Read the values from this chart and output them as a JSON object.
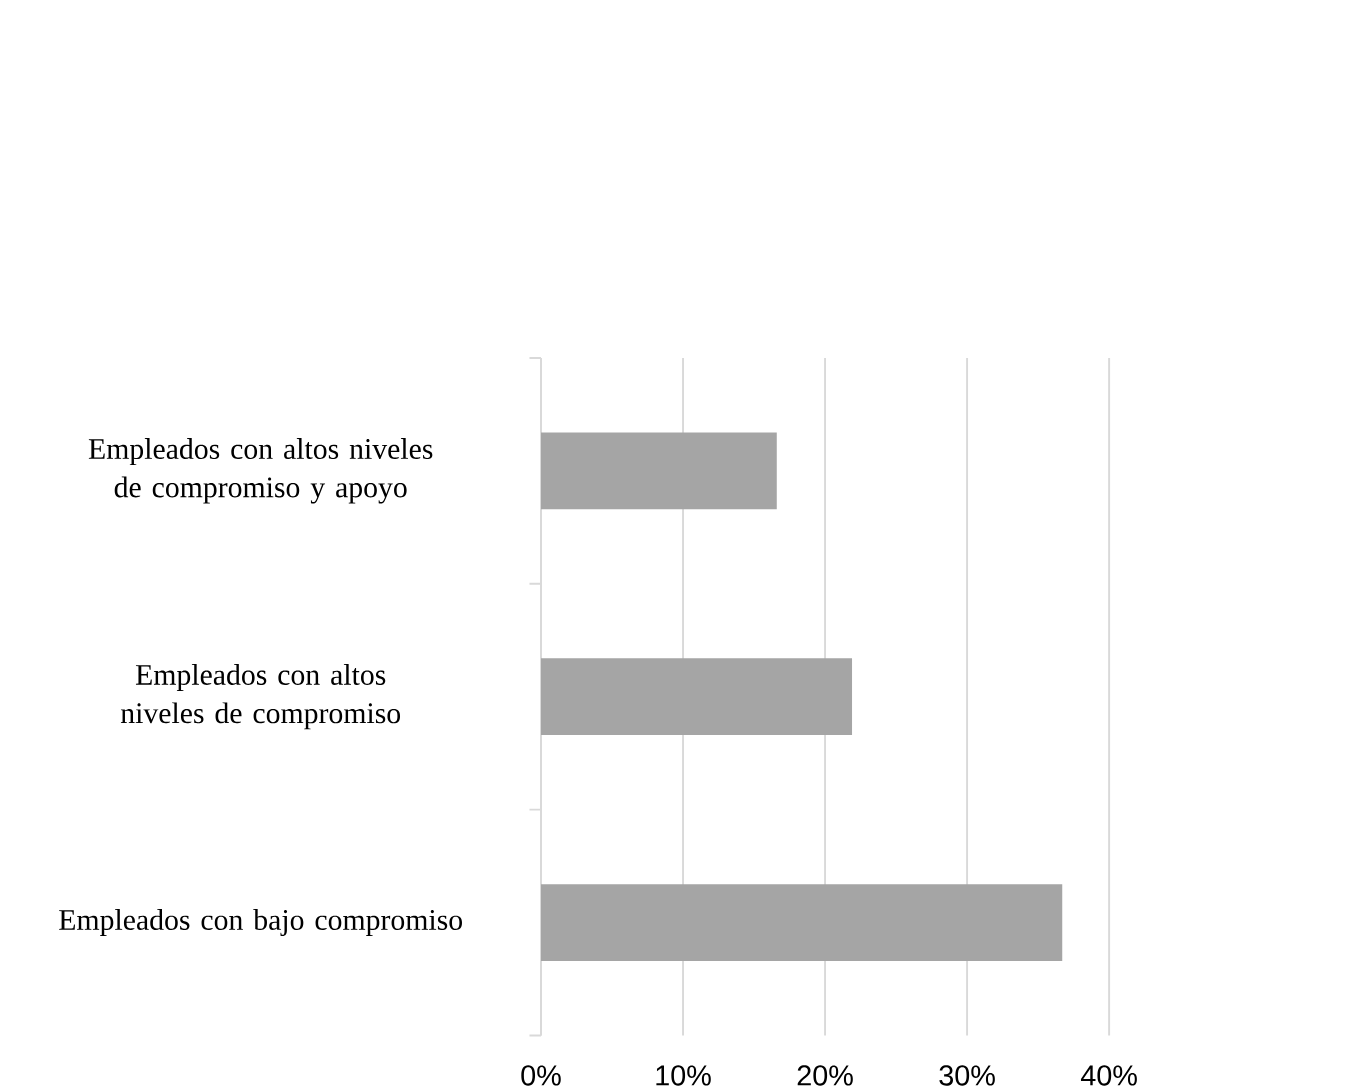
{
  "chart_data": {
    "type": "bar",
    "orientation": "horizontal",
    "categories": [
      "Empleados con altos niveles de compromiso y apoyo",
      "Empleados con altos niveles de compromiso",
      "Empleados con bajo compromiso"
    ],
    "values": [
      16.6,
      21.9,
      36.7
    ],
    "color": "#a5a5a5",
    "xlim": [
      0,
      40
    ],
    "xticks": [
      {
        "value": 0,
        "label": "0%"
      },
      {
        "value": 10,
        "label": "10%"
      },
      {
        "value": 20,
        "label": "20%"
      },
      {
        "value": 30,
        "label": "30%"
      },
      {
        "value": 40,
        "label": "40%"
      }
    ],
    "grid": "x"
  }
}
